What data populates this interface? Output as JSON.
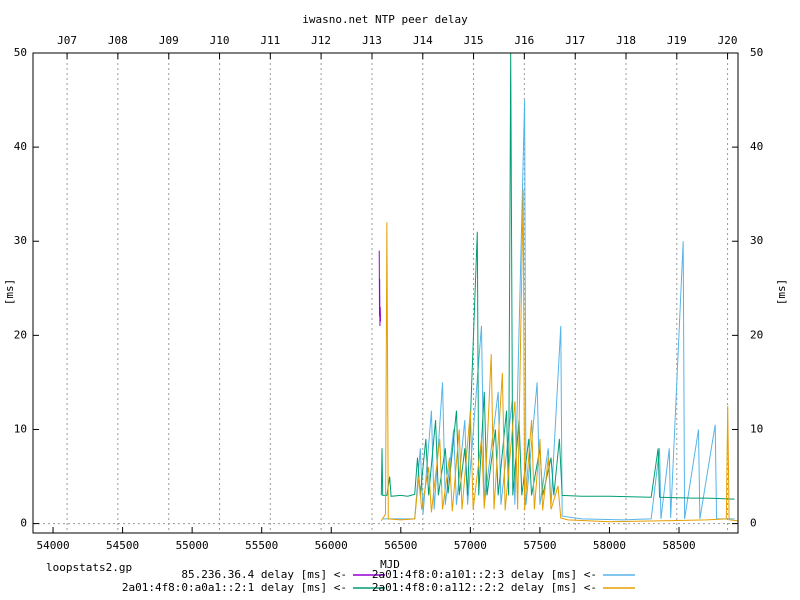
{
  "chart_data": {
    "type": "line",
    "title": "iwasno.net NTP peer delay",
    "xlabel": "MJD",
    "ylabel": "[ms]",
    "y2label": "[ms]",
    "footer": "loopstats2.gp",
    "xlim": [
      53856,
      58924
    ],
    "ylim": [
      -1,
      50
    ],
    "y2lim": [
      -1,
      50
    ],
    "xticks": [
      54000,
      54500,
      55000,
      55500,
      56000,
      56500,
      57000,
      57500,
      58000,
      58500
    ],
    "yticks": [
      0,
      10,
      20,
      30,
      40,
      50
    ],
    "y2ticks": [
      0,
      10,
      20,
      30,
      40,
      50
    ],
    "x2ticks": [
      {
        "value": 54101,
        "label": "J07"
      },
      {
        "value": 54466,
        "label": "J08"
      },
      {
        "value": 54832,
        "label": "J09"
      },
      {
        "value": 55197,
        "label": "J10"
      },
      {
        "value": 55562,
        "label": "J11"
      },
      {
        "value": 55927,
        "label": "J12"
      },
      {
        "value": 56293,
        "label": "J13"
      },
      {
        "value": 56658,
        "label": "J14"
      },
      {
        "value": 57023,
        "label": "J15"
      },
      {
        "value": 57388,
        "label": "J16"
      },
      {
        "value": 57754,
        "label": "J17"
      },
      {
        "value": 58119,
        "label": "J18"
      },
      {
        "value": 58484,
        "label": "J19"
      },
      {
        "value": 58849,
        "label": "J20"
      }
    ],
    "grid": true,
    "zeroaxis": true,
    "legend": "bottom",
    "series": [
      {
        "name": "85.236.36.4 delay [ms] <-",
        "color": "#9400d3",
        "x": [
          56345,
          56347,
          56348,
          56350,
          56352,
          56354
        ],
        "values": [
          29,
          22,
          26,
          21,
          23,
          21.5
        ]
      },
      {
        "name": "2a01:4f8:0:a101::2:3 delay [ms] <-",
        "color": "#56b4e9",
        "x": [
          56365,
          56600,
          56640,
          56660,
          56720,
          56740,
          56800,
          56820,
          56880,
          56900,
          56960,
          56980,
          57080,
          57100,
          57200,
          57220,
          57300,
          57320,
          57390,
          57400,
          57480,
          57500,
          57560,
          57580,
          57650,
          57660,
          57800,
          58100,
          58300,
          58360,
          58370,
          58430,
          58440,
          58530,
          58540,
          58640,
          58650,
          58760,
          58770,
          58900
        ],
        "values": [
          0.5,
          0.5,
          8,
          1,
          12,
          1.5,
          15,
          2,
          10,
          2,
          11,
          2,
          21,
          2,
          14,
          2,
          13,
          2,
          45,
          2,
          15,
          2,
          8,
          2,
          21,
          0.8,
          0.5,
          0.4,
          0.5,
          8,
          0.5,
          8,
          0.6,
          30,
          0.5,
          10,
          0.5,
          10.5,
          0.5,
          0.5
        ]
      },
      {
        "name": "2a01:4f8:0:a0a1::2:1 delay [ms] <-",
        "color": "#009e73",
        "x": [
          56360,
          56365,
          56370,
          56400,
          56420,
          56430,
          56500,
          56550,
          56600,
          56620,
          56640,
          56680,
          56700,
          56750,
          56770,
          56820,
          56840,
          56900,
          56920,
          56960,
          56980,
          57050,
          57060,
          57100,
          57120,
          57180,
          57200,
          57260,
          57275,
          57290,
          57305,
          57350,
          57370,
          57420,
          57440,
          57500,
          57520,
          57580,
          57600,
          57640,
          57660,
          57800,
          58000,
          58300,
          58350,
          58360,
          58600,
          58700,
          58900
        ],
        "values": [
          3,
          8,
          3,
          3,
          5,
          2.9,
          3,
          2.9,
          3.1,
          7,
          3,
          9,
          3,
          11,
          3,
          8,
          3.2,
          12,
          3,
          8,
          3,
          31,
          3,
          14,
          3,
          10,
          3,
          12,
          3,
          50,
          3,
          11,
          3,
          9,
          3,
          8,
          3,
          7,
          3,
          9,
          3,
          2.9,
          2.9,
          2.8,
          8,
          2.8,
          2.7,
          2.7,
          2.6
        ]
      },
      {
        "name": "2a01:4f8:0:a112::2:2 delay [ms] <-",
        "color": "#e69f00",
        "x": [
          56360,
          56390,
          56400,
          56410,
          56500,
          56600,
          56610,
          56630,
          56650,
          56700,
          56720,
          56780,
          56800,
          56850,
          56870,
          56920,
          56940,
          57000,
          57020,
          57080,
          57100,
          57150,
          57170,
          57230,
          57250,
          57320,
          57340,
          57380,
          57390,
          57440,
          57460,
          57500,
          57520,
          57560,
          57580,
          57630,
          57650,
          57700,
          58000,
          58400,
          58700,
          58840,
          58850,
          58860,
          58920
        ],
        "values": [
          0.3,
          1,
          32,
          0.5,
          0.4,
          0.5,
          2,
          5,
          1.5,
          6,
          1.2,
          9,
          1.5,
          7,
          1.3,
          10,
          1.5,
          12,
          1.5,
          9,
          1.6,
          18,
          1.5,
          16,
          1.4,
          13,
          1.5,
          35.5,
          1.4,
          11,
          1.5,
          9,
          1.4,
          7,
          1.5,
          4,
          0.6,
          0.4,
          0.2,
          0.3,
          0.4,
          0.5,
          12.5,
          0.4,
          0.3
        ]
      }
    ]
  }
}
